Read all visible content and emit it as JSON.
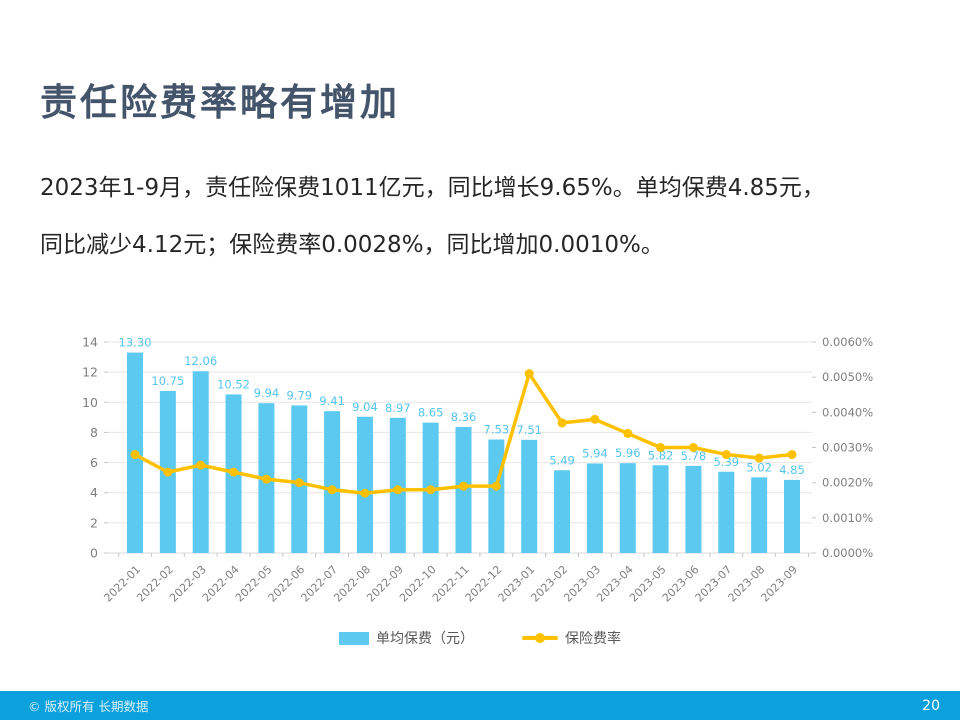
{
  "slide": {
    "title": "责任险费率略有增加",
    "body_lines": [
      "2023年1-9月，责任险保费1011亿元，同比增长9.65%。单均保费4.85元，",
      "同比减少4.12元；保险费率0.0028%，同比增加0.0010%。"
    ]
  },
  "footer": {
    "copyright": "© 版权所有 长期数据",
    "page_number": "20"
  },
  "colors": {
    "title_text": "#44546A",
    "body_text": "#262626",
    "bar": "#5BC9F0",
    "bar_label": "#54C4EF",
    "line": "#FFC000",
    "axis_text": "#808080",
    "grid": "#E6E6E6",
    "baseline": "#D9D9D9",
    "tick": "#C6C6C6",
    "legend_text": "#595959",
    "footer_bg": "#0BA1DC",
    "footer_text": "#D8F1FC",
    "page_text": "#FFFFFF"
  },
  "chart_data": {
    "type": "bar",
    "subtype": "combo-bar-line",
    "categories": [
      "2022-01",
      "2022-02",
      "2022-03",
      "2022-04",
      "2022-05",
      "2022-06",
      "2022-07",
      "2022-08",
      "2022-09",
      "2022-10",
      "2022-11",
      "2022-12",
      "2023-01",
      "2023-02",
      "2023-03",
      "2023-04",
      "2023-05",
      "2023-06",
      "2023-07",
      "2023-08",
      "2023-09"
    ],
    "series": [
      {
        "name": "单均保费（元）",
        "type": "bar",
        "axis": "left",
        "values": [
          13.3,
          10.75,
          12.06,
          10.52,
          9.94,
          9.79,
          9.41,
          9.04,
          8.97,
          8.65,
          8.36,
          7.53,
          7.51,
          5.49,
          5.94,
          5.96,
          5.82,
          5.78,
          5.39,
          5.02,
          4.85
        ],
        "data_labels": true
      },
      {
        "name": "保险费率",
        "type": "line",
        "axis": "right",
        "values_percent": [
          0.0028,
          0.0023,
          0.0025,
          0.0023,
          0.0021,
          0.002,
          0.0018,
          0.0017,
          0.0018,
          0.0018,
          0.0019,
          0.0019,
          0.0051,
          0.0037,
          0.0038,
          0.0034,
          0.003,
          0.003,
          0.0028,
          0.0027,
          0.0028
        ],
        "data_labels": false
      }
    ],
    "left_axis": {
      "min": 0,
      "max": 14,
      "step": 2,
      "ticks": [
        "0",
        "2",
        "4",
        "6",
        "8",
        "10",
        "12",
        "14"
      ]
    },
    "right_axis": {
      "min": 0,
      "max": 0.006,
      "step": 0.001,
      "ticks": [
        "0.0000%",
        "0.0010%",
        "0.0020%",
        "0.0030%",
        "0.0040%",
        "0.0050%",
        "0.0060%"
      ]
    },
    "grid": true,
    "legend_position": "bottom"
  }
}
